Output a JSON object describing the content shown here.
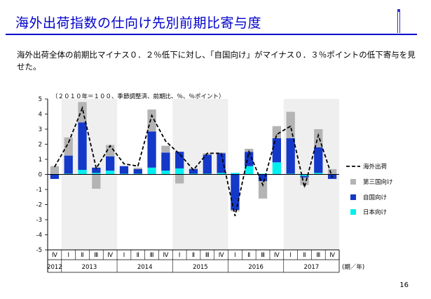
{
  "slide": {
    "title": "海外出荷指数の仕向け先別前期比寄与度",
    "summary": "海外出荷全体の前期比マイナス０．２％低下に対し、「自国向け」がマイナス０．３％ポイントの低下寄与を見せた。",
    "page_number": "16"
  },
  "chart_data": {
    "type": "bar",
    "stacked": true,
    "note": "（２０１０年＝１００、季節調整済、前期比、％、％ポイント）",
    "ylim": [
      -5,
      5
    ],
    "yticks": [
      "5",
      "4",
      "3",
      "2",
      "1",
      "0",
      "-1",
      "-2",
      "-3",
      "-4",
      "-5"
    ],
    "x_axis_unit": "(期／年)",
    "quarters": [
      "Ⅳ",
      "Ⅰ",
      "Ⅱ",
      "Ⅲ",
      "Ⅳ",
      "Ⅰ",
      "Ⅱ",
      "Ⅲ",
      "Ⅳ",
      "Ⅰ",
      "Ⅱ",
      "Ⅲ",
      "Ⅳ",
      "Ⅰ",
      "Ⅱ",
      "Ⅲ",
      "Ⅳ",
      "Ⅰ",
      "Ⅱ",
      "Ⅲ",
      "Ⅳ"
    ],
    "years": [
      {
        "label": "2012",
        "start": 0,
        "end": 0
      },
      {
        "label": "2013",
        "start": 1,
        "end": 4
      },
      {
        "label": "2014",
        "start": 5,
        "end": 8
      },
      {
        "label": "2015",
        "start": 9,
        "end": 12
      },
      {
        "label": "2016",
        "start": 13,
        "end": 16
      },
      {
        "label": "2017",
        "start": 17,
        "end": 20
      }
    ],
    "shaded_years": [
      "2013",
      "2015",
      "2017"
    ],
    "series": [
      {
        "name": "日本向け",
        "kind": "bar",
        "color": "#00f0f0",
        "values": [
          0.0,
          0.05,
          0.3,
          0.1,
          0.25,
          0.05,
          0.05,
          0.45,
          0.25,
          0.4,
          0.05,
          0.05,
          0.1,
          0.1,
          0.55,
          0.05,
          0.8,
          0.05,
          -0.1,
          0.1,
          0.0
        ]
      },
      {
        "name": "自国向け",
        "kind": "bar",
        "color": "#1438c8",
        "values": [
          -0.3,
          1.2,
          3.15,
          0.35,
          0.95,
          0.5,
          0.3,
          2.4,
          1.2,
          1.1,
          0.3,
          1.25,
          1.3,
          -2.35,
          0.95,
          -0.45,
          1.6,
          2.35,
          -0.1,
          1.7,
          -0.3
        ]
      },
      {
        "name": "第三国向け",
        "kind": "bar",
        "color": "#b4b4b4",
        "values": [
          0.55,
          1.2,
          1.35,
          -0.95,
          0.75,
          0.0,
          0.1,
          1.45,
          0.45,
          -0.6,
          0.05,
          0.1,
          0.05,
          -0.1,
          0.2,
          -1.15,
          0.8,
          1.75,
          -0.5,
          1.2,
          0.35
        ]
      },
      {
        "name": "海外出荷",
        "kind": "line",
        "color": "#000000",
        "values": [
          0.5,
          2.1,
          4.4,
          0.4,
          1.9,
          0.7,
          0.55,
          3.9,
          2.2,
          1.35,
          0.3,
          1.4,
          1.4,
          -2.75,
          1.5,
          -0.7,
          2.65,
          3.2,
          -0.85,
          2.6,
          -0.2
        ]
      }
    ],
    "legend": {
      "placement": "right",
      "order": [
        "海外出荷",
        "第三国向け",
        "自国向け",
        "日本向け"
      ]
    },
    "grid": false
  }
}
